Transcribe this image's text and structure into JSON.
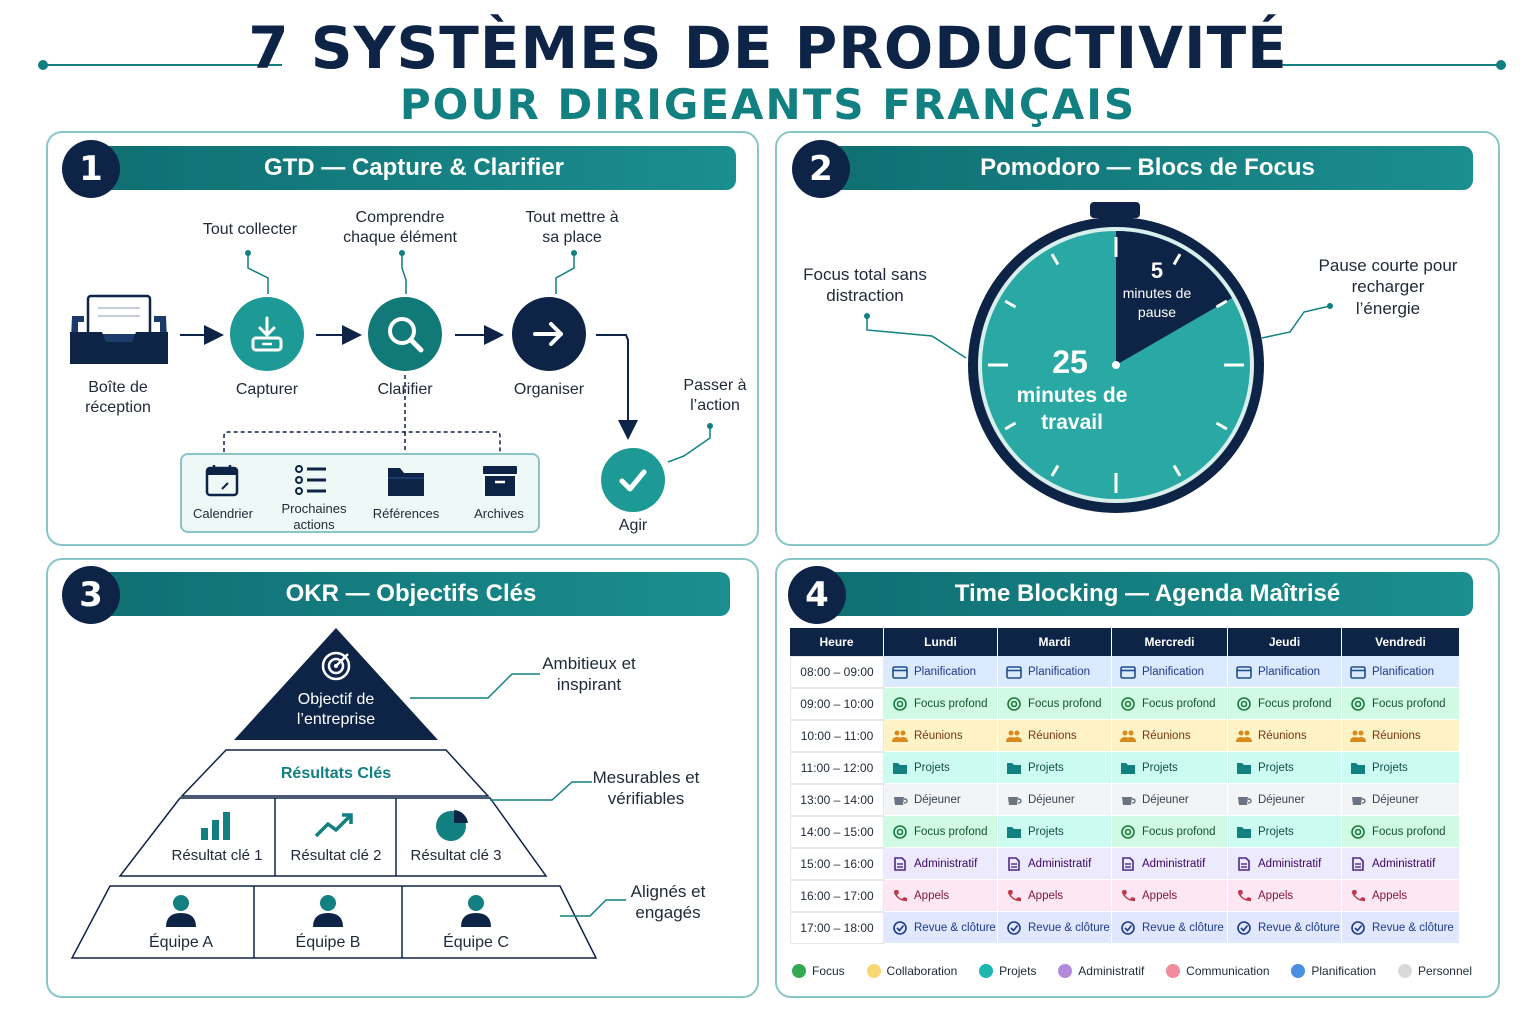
{
  "title": {
    "line1": "7 SYSTÈMES DE PRODUCTIVITÉ",
    "line2": "POUR DIRIGEANTS FRANÇAIS"
  },
  "panel1": {
    "number": "1",
    "header": "GTD — Capture & Clarifier",
    "inbox_label": "Boîte de réception",
    "annotations": {
      "collect": "Tout collecter",
      "understand": "Comprendre chaque élément",
      "place": "Tout mettre à sa place",
      "act": "Passer à l’action"
    },
    "steps": {
      "capture": "Capturer",
      "clarify": "Clarifier",
      "organize": "Organiser",
      "act": "Agir"
    },
    "categories": [
      "Calendrier",
      "Prochaines actions",
      "Références",
      "Archives"
    ]
  },
  "panel2": {
    "number": "2",
    "header": "Pomodoro — Blocs de Focus",
    "work_value": "25",
    "work_label": "minutes de travail",
    "pause_value": "5",
    "pause_label": "minutes de pause",
    "annotation_left": "Focus total sans distraction",
    "annotation_right": "Pause courte pour recharger l’énergie"
  },
  "panel3": {
    "number": "3",
    "header": "OKR — Objectifs Clés",
    "objective": "Objectif de l’entreprise",
    "key_results_title": "Résultats Clés",
    "key_results": [
      "Résultat clé 1",
      "Résultat clé 2",
      "Résultat clé 3"
    ],
    "teams": [
      "Équipe A",
      "Équipe B",
      "Équipe C"
    ],
    "annotations": {
      "top": "Ambitieux et inspirant",
      "middle": "Mesurables et vérifiables",
      "bottom": "Alignés et engagés"
    }
  },
  "panel4": {
    "number": "4",
    "header": "Time Blocking — Agenda Maîtrisé",
    "columns": [
      "Heure",
      "Lundi",
      "Mardi",
      "Mercredi",
      "Jeudi",
      "Vendredi"
    ],
    "rows": [
      {
        "time": "08:00 – 09:00",
        "cells": [
          "Planification",
          "Planification",
          "Planification",
          "Planification",
          "Planification"
        ]
      },
      {
        "time": "09:00 – 10:00",
        "cells": [
          "Focus profond",
          "Focus profond",
          "Focus profond",
          "Focus profond",
          "Focus profond"
        ]
      },
      {
        "time": "10:00 – 11:00",
        "cells": [
          "Réunions",
          "Réunions",
          "Réunions",
          "Réunions",
          "Réunions"
        ]
      },
      {
        "time": "11:00 – 12:00",
        "cells": [
          "Projets",
          "Projets",
          "Projets",
          "Projets",
          "Projets"
        ]
      },
      {
        "time": "13:00 – 14:00",
        "cells": [
          "Déjeuner",
          "Déjeuner",
          "Déjeuner",
          "Déjeuner",
          "Déjeuner"
        ]
      },
      {
        "time": "14:00 – 15:00",
        "cells": [
          "Focus profond",
          "Projets",
          "Focus profond",
          "Projets",
          "Focus profond"
        ]
      },
      {
        "time": "15:00 – 16:00",
        "cells": [
          "Administratif",
          "Administratif",
          "Administratif",
          "Administratif",
          "Administratif"
        ]
      },
      {
        "time": "16:00 – 17:00",
        "cells": [
          "Appels",
          "Appels",
          "Appels",
          "Appels",
          "Appels"
        ]
      },
      {
        "time": "17:00 – 18:00",
        "cells": [
          "Revue & clôture",
          "Revue & clôture",
          "Revue & clôture",
          "Revue & clôture",
          "Revue & clôture"
        ]
      }
    ],
    "legend": [
      {
        "label": "Focus",
        "color": "#34a853"
      },
      {
        "label": "Collaboration",
        "color": "#f7d774"
      },
      {
        "label": "Projets",
        "color": "#1fb5b0"
      },
      {
        "label": "Administratif",
        "color": "#b18bd9"
      },
      {
        "label": "Communication",
        "color": "#f28b9b"
      },
      {
        "label": "Planification",
        "color": "#4a90e2"
      },
      {
        "label": "Personnel",
        "color": "#d9d9d9"
      }
    ]
  },
  "colors": {
    "navy": "#0e2447",
    "teal": "#127f80",
    "teal_light": "#2aa9a4"
  }
}
